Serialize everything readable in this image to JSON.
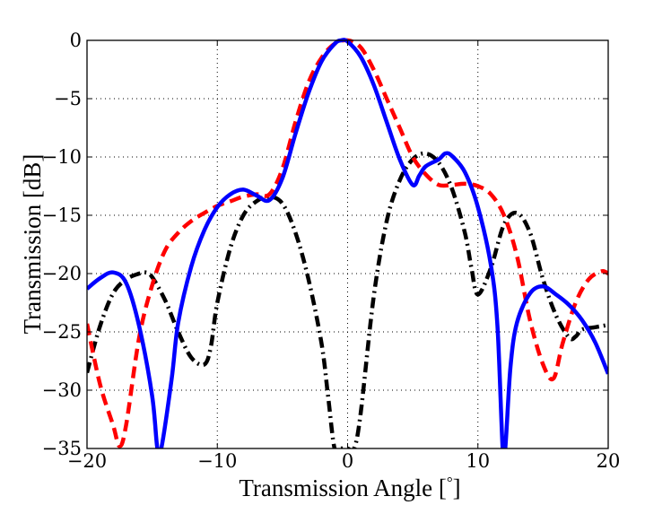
{
  "chart_data": {
    "type": "line",
    "title": "",
    "xlabel": "Transmission Angle [",
    "xlabel_unit": "°",
    "xlabel_close": "]",
    "ylabel": "Transmission [dB]",
    "xlim": [
      -20,
      20
    ],
    "ylim": [
      -35,
      0
    ],
    "xticks": [
      -20,
      -10,
      0,
      10,
      20
    ],
    "yticks": [
      0,
      -5,
      -10,
      -15,
      -20,
      -25,
      -30,
      -35
    ],
    "xtick_labels": [
      "−20",
      "−10",
      "0",
      "10",
      "20"
    ],
    "ytick_labels": [
      "0",
      "−5",
      "−10",
      "−15",
      "−20",
      "−25",
      "−30",
      "−35"
    ],
    "grid": true,
    "series": [
      {
        "name": "solid blue",
        "color": "#0000ff",
        "style": "solid",
        "x": [
          -20,
          -19,
          -18,
          -17,
          -16,
          -15,
          -14.6,
          -14.3,
          -13.5,
          -13,
          -12,
          -11,
          -10,
          -9,
          -8,
          -7,
          -6,
          -5,
          -4,
          -3,
          -2,
          -1,
          -0.5,
          0,
          1,
          2,
          3,
          4,
          5,
          5.5,
          6,
          7,
          7.5,
          8,
          9,
          10,
          11,
          11.5,
          11.9,
          12.1,
          12.5,
          13,
          14,
          15,
          16,
          17,
          18,
          19,
          20
        ],
        "y": [
          -21.3,
          -20.4,
          -19.9,
          -20.8,
          -24.5,
          -30.5,
          -35,
          -35,
          -29,
          -24.2,
          -19.4,
          -16.3,
          -14.3,
          -13.2,
          -12.8,
          -13.3,
          -13.7,
          -11.8,
          -8.0,
          -4.5,
          -1.8,
          -0.3,
          0,
          -0.1,
          -1.4,
          -3.8,
          -7.0,
          -10.2,
          -12.4,
          -11.6,
          -10.8,
          -10.2,
          -9.7,
          -9.9,
          -11.3,
          -14.3,
          -19.3,
          -24.5,
          -35,
          -35,
          -28.0,
          -24.2,
          -21.7,
          -21.1,
          -21.8,
          -22.7,
          -24.0,
          -25.9,
          -28.6
        ]
      },
      {
        "name": "dashed red",
        "color": "#ff0000",
        "style": "dashed",
        "x": [
          -20,
          -19,
          -18,
          -17.5,
          -17,
          -16,
          -15,
          -14,
          -13,
          -12,
          -11,
          -10,
          -9,
          -8,
          -7,
          -6,
          -5,
          -4,
          -3,
          -2,
          -1,
          0,
          1,
          2,
          3,
          4,
          5,
          6,
          7,
          8,
          9,
          10,
          11,
          12,
          13,
          14,
          15,
          15.8,
          16.5,
          17.5,
          18.5,
          19.5,
          20
        ],
        "y": [
          -24.3,
          -29.5,
          -33.0,
          -34.8,
          -33.0,
          -25.5,
          -21.0,
          -18.0,
          -16.5,
          -15.5,
          -14.8,
          -14.2,
          -13.8,
          -13.4,
          -13.2,
          -13.2,
          -11.0,
          -7.0,
          -3.6,
          -1.5,
          -0.3,
          0,
          -0.6,
          -2.5,
          -5.0,
          -7.5,
          -10.0,
          -11.5,
          -12.4,
          -12.4,
          -12.3,
          -12.5,
          -13.2,
          -15.0,
          -18.5,
          -24.0,
          -27.8,
          -29.0,
          -26.0,
          -22.5,
          -20.5,
          -19.8,
          -20.0
        ]
      },
      {
        "name": "dash-dot black",
        "color": "#000000",
        "style": "dashdot",
        "x": [
          -20,
          -19,
          -18,
          -17,
          -16,
          -15.5,
          -15,
          -14,
          -13,
          -12,
          -11,
          -10.5,
          -10,
          -9,
          -8,
          -7,
          -6,
          -5,
          -4,
          -3,
          -2,
          -1.5,
          -1,
          -0.5,
          0,
          0.5,
          1,
          2,
          3,
          4,
          5,
          6,
          7,
          8,
          9,
          9.5,
          10,
          11,
          12,
          13,
          14,
          15,
          16,
          17,
          17.5,
          18,
          19,
          20
        ],
        "y": [
          -28.5,
          -24.5,
          -21.7,
          -20.5,
          -20.0,
          -19.9,
          -20.3,
          -22.3,
          -25.0,
          -27.2,
          -27.8,
          -26.3,
          -22.5,
          -17.8,
          -15.0,
          -13.8,
          -13.4,
          -14.0,
          -16.5,
          -20.5,
          -26.0,
          -30.5,
          -35,
          -35,
          -35,
          -35,
          -32.0,
          -22.0,
          -15.5,
          -12.0,
          -10.2,
          -9.7,
          -10.5,
          -12.7,
          -16.5,
          -19.5,
          -21.8,
          -19.5,
          -15.8,
          -14.8,
          -16.5,
          -20.5,
          -23.6,
          -25.5,
          -25.4,
          -24.8,
          -24.6,
          -24.4
        ]
      }
    ]
  }
}
